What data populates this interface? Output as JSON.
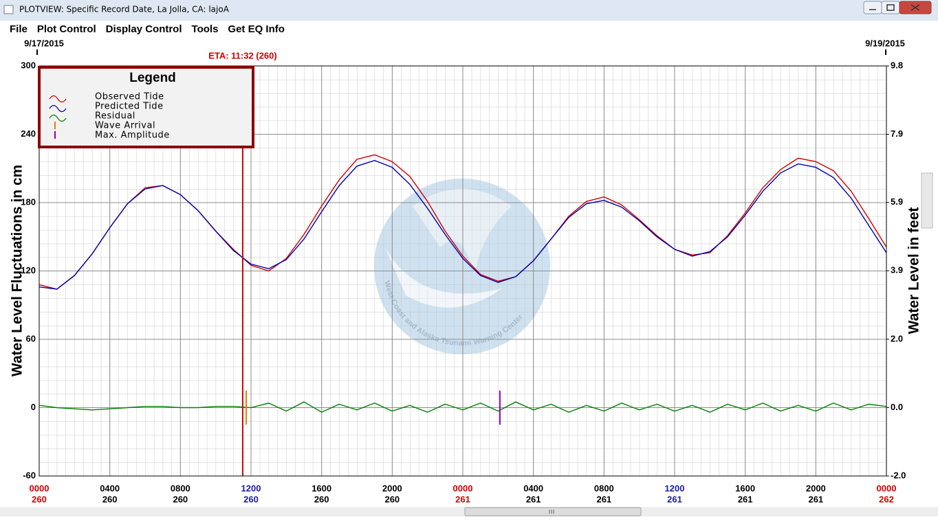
{
  "window": {
    "title": "PLOTVIEW: Specific Record Date, La Jolla, CA: lajoA"
  },
  "menu": [
    "File",
    "Plot Control",
    "Display Control",
    "Tools",
    "Get EQ Info"
  ],
  "chart_data": {
    "type": "line",
    "start_date": "9/17/2015",
    "end_date": "9/19/2015",
    "y_label": "Water Level Fluctuations in cm",
    "y2_label": "Water Level in feet",
    "watermark": "West Coast and Alaska Tsunami Warning Center",
    "legend_title": "Legend",
    "legend": "top-left",
    "grid": true,
    "xlim": [
      0,
      48
    ],
    "xticks": [
      {
        "value": 0,
        "label": "0000",
        "day": "260",
        "color": "#d00000"
      },
      {
        "value": 4,
        "label": "0400",
        "day": "260",
        "color": "#000000"
      },
      {
        "value": 8,
        "label": "0800",
        "day": "260",
        "color": "#000000"
      },
      {
        "value": 12,
        "label": "1200",
        "day": "260",
        "color": "#1a1aa8"
      },
      {
        "value": 16,
        "label": "1600",
        "day": "260",
        "color": "#000000"
      },
      {
        "value": 20,
        "label": "2000",
        "day": "260",
        "color": "#000000"
      },
      {
        "value": 24,
        "label": "0000",
        "day": "261",
        "color": "#d00000"
      },
      {
        "value": 28,
        "label": "0400",
        "day": "261",
        "color": "#000000"
      },
      {
        "value": 32,
        "label": "0800",
        "day": "261",
        "color": "#000000"
      },
      {
        "value": 36,
        "label": "1200",
        "day": "261",
        "color": "#1a1aa8"
      },
      {
        "value": 40,
        "label": "1600",
        "day": "261",
        "color": "#000000"
      },
      {
        "value": 44,
        "label": "2000",
        "day": "261",
        "color": "#000000"
      },
      {
        "value": 48,
        "label": "0000",
        "day": "262",
        "color": "#d00000"
      }
    ],
    "ylim": [
      -60,
      300
    ],
    "yticks": [
      -60,
      0,
      60,
      120,
      180,
      240,
      300
    ],
    "y2lim": [
      -1.97,
      9.84
    ],
    "y2ticks": [
      {
        "value": -1.97,
        "label": "-2.0"
      },
      {
        "value": 0,
        "label": "0.0"
      },
      {
        "value": 1.97,
        "label": "2.0"
      },
      {
        "value": 3.94,
        "label": "3.9"
      },
      {
        "value": 5.91,
        "label": "5.9"
      },
      {
        "value": 7.87,
        "label": "7.9"
      },
      {
        "value": 9.84,
        "label": "9.8"
      }
    ],
    "x": [
      0,
      1,
      2,
      3,
      4,
      5,
      6,
      7,
      8,
      9,
      10,
      11,
      12,
      13,
      14,
      15,
      16,
      17,
      18,
      19,
      20,
      21,
      22,
      23,
      24,
      25,
      26,
      27,
      28,
      29,
      30,
      31,
      32,
      33,
      34,
      35,
      36,
      37,
      38,
      39,
      40,
      41,
      42,
      43,
      44,
      45,
      46,
      47,
      48
    ],
    "series": [
      {
        "name": "Observed Tide",
        "color": "#d00000",
        "values": [
          108,
          104,
          116,
          135,
          158,
          179,
          193,
          195,
          187,
          173,
          155,
          139,
          125,
          120,
          131,
          152,
          177,
          200,
          218,
          222,
          216,
          203,
          181,
          155,
          133,
          117,
          111,
          115,
          129,
          148,
          168,
          181,
          185,
          178,
          165,
          151,
          139,
          134,
          136,
          151,
          171,
          193,
          209,
          219,
          216,
          208,
          190,
          166,
          141
        ]
      },
      {
        "name": "Predicted Tide",
        "color": "#0000b0",
        "values": [
          106,
          104,
          116,
          135,
          158,
          179,
          192,
          195,
          187,
          173,
          155,
          138,
          126,
          122,
          130,
          148,
          172,
          195,
          212,
          217,
          211,
          196,
          175,
          152,
          131,
          116,
          110,
          115,
          129,
          148,
          167,
          179,
          182,
          176,
          164,
          150,
          139,
          133,
          137,
          150,
          169,
          190,
          206,
          214,
          211,
          202,
          184,
          160,
          136
        ]
      },
      {
        "name": "Residual",
        "color": "#008000",
        "values": [
          2,
          0,
          -1,
          -2,
          -1,
          0,
          1,
          1,
          0,
          0,
          1,
          1,
          0,
          4,
          -3,
          5,
          -4,
          3,
          -2,
          4,
          -3,
          2,
          -4,
          3,
          -2,
          4,
          -3,
          5,
          -2,
          3,
          -4,
          2,
          -3,
          4,
          -2,
          3,
          -3,
          2,
          -4,
          3,
          -2,
          4,
          -3,
          2,
          -3,
          4,
          -2,
          3,
          1
        ]
      }
    ],
    "markers": [
      {
        "name": "Wave Arrival",
        "color": "#e08000",
        "x": 11.73,
        "low": -15,
        "high": 15
      },
      {
        "name": "Max. Amplitude",
        "color": "#9000b0",
        "x": 26.1,
        "low": -15,
        "high": 15
      }
    ],
    "eta": {
      "label": "ETA: 11:32 (260)",
      "x": 11.53,
      "color": "#d00000"
    }
  }
}
